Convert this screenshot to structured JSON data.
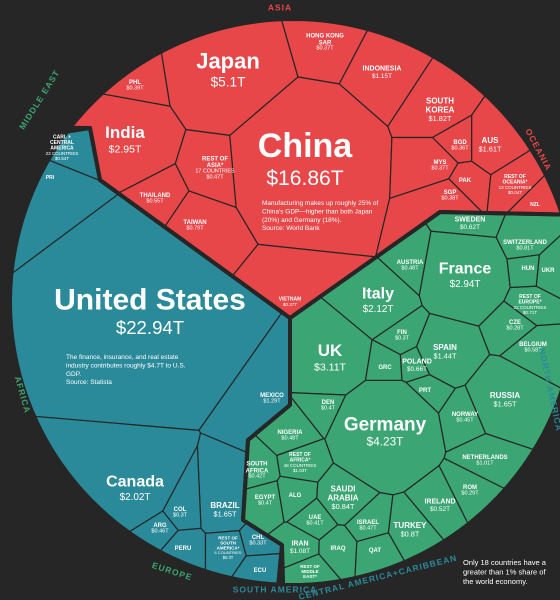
{
  "chart_data": {
    "type": "voronoi_treemap",
    "regions": [
      {
        "name": "ASIA",
        "color": "#e8474a",
        "countries": [
          {
            "name": "China",
            "value": 16.86,
            "value_label": "$16.86T"
          },
          {
            "name": "Japan",
            "value": 5.1,
            "value_label": "$5.1T"
          },
          {
            "name": "India",
            "value": 2.95,
            "value_label": "$2.95T"
          },
          {
            "name": "REST OF ASIA*",
            "note": "17 COUNTRIES",
            "value": 0.47,
            "value_label": "$0.47T"
          },
          {
            "name": "THAILAND",
            "value": 0.55,
            "value_label": "$0.55T"
          },
          {
            "name": "TAIWAN",
            "value": 0.79,
            "value_label": "$0.79T"
          },
          {
            "name": "HONG KONG SAR",
            "value": 0.37,
            "value_label": "$0.37T"
          },
          {
            "name": "INDONESIA",
            "value": 1.15,
            "value_label": "$1.15T"
          },
          {
            "name": "SOUTH KOREA",
            "value": 1.82,
            "value_label": "$1.82T"
          },
          {
            "name": "BGD",
            "value": 0.36,
            "value_label": "$0.36T"
          },
          {
            "name": "MYS",
            "value": 0.37,
            "value_label": "$0.37T"
          },
          {
            "name": "PAK",
            "value": 0.26
          },
          {
            "name": "SGP",
            "value": 0.38,
            "value_label": "$0.38T"
          },
          {
            "name": "PHL",
            "value": 0.39,
            "value_label": "$0.39T"
          },
          {
            "name": "VIETNAM",
            "value": 0.37,
            "value_label": "$0.37T"
          }
        ]
      },
      {
        "name": "OCEANIA",
        "color": "#e8474a",
        "countries": [
          {
            "name": "AUS",
            "value": 1.61,
            "value_label": "$1.61T"
          },
          {
            "name": "REST OF OCEANIA*",
            "note": "13 COUNTRIES",
            "value": 0.04,
            "value_label": "$0.04T"
          },
          {
            "name": "NZL",
            "value": 0.25
          }
        ]
      },
      {
        "name": "NORTH AMERICA",
        "color": "#2b8a9a",
        "countries": [
          {
            "name": "United States",
            "value": 22.94,
            "value_label": "$22.94T"
          },
          {
            "name": "Canada",
            "value": 2.02,
            "value_label": "$2.02T"
          },
          {
            "name": "MEXICO",
            "value": 1.29,
            "value_label": "$1.29T"
          }
        ]
      },
      {
        "name": "CENTRAL AMERICA+CARIBBEAN",
        "color": "#2b8a9a",
        "countries": [
          {
            "name": "CARI. + CENTRAL AMERICA",
            "note": "23 COUNTRIES",
            "value": 0.54,
            "value_label": "$0.54T"
          },
          {
            "name": "PRI",
            "value": 0.1
          }
        ]
      },
      {
        "name": "SOUTH AMERICA",
        "color": "#2b8a9a",
        "countries": [
          {
            "name": "BRAZIL",
            "value": 1.65,
            "value_label": "$1.65T"
          },
          {
            "name": "ARG",
            "value": 0.46,
            "value_label": "$0.46T"
          },
          {
            "name": "COL",
            "value": 0.3,
            "value_label": "$0.3T"
          },
          {
            "name": "PERU",
            "value": 0.22
          },
          {
            "name": "CHL",
            "value": 0.33,
            "value_label": "$0.33T"
          },
          {
            "name": "REST OF SOUTH AMERICA*",
            "note": "6 COUNTRIES",
            "value": 0.3,
            "value_label": "$0.3T"
          },
          {
            "name": "ECU",
            "value": 0.11
          }
        ]
      },
      {
        "name": "EUROPE",
        "color": "#3ba673",
        "countries": [
          {
            "name": "Germany",
            "value": 4.23,
            "value_label": "$4.23T"
          },
          {
            "name": "UK",
            "value": 3.11,
            "value_label": "$3.11T"
          },
          {
            "name": "France",
            "value": 2.94,
            "value_label": "$2.94T"
          },
          {
            "name": "Italy",
            "value": 2.12,
            "value_label": "$2.12T"
          },
          {
            "name": "SPAIN",
            "value": 1.44,
            "value_label": "$1.44T"
          },
          {
            "name": "RUSSIA",
            "value": 1.65,
            "value_label": "$1.65T"
          },
          {
            "name": "REST OF EUROPE*",
            "note": "22 COUNTRIES",
            "value": 0.71,
            "value_label": "$0.71T"
          },
          {
            "name": "SWEDEN",
            "value": 0.62,
            "value_label": "$0.62T"
          },
          {
            "name": "SWITZERLAND",
            "value": 0.81,
            "value_label": "$0.81T"
          },
          {
            "name": "NETHERLANDS",
            "value": 1.01,
            "value_label": "$1.01T"
          },
          {
            "name": "POLAND",
            "value": 0.66,
            "value_label": "$0.66T"
          },
          {
            "name": "BELGIUM",
            "value": 0.58,
            "value_label": "$0.58T"
          },
          {
            "name": "AUSTRIA",
            "value": 0.48,
            "value_label": "$0.48T"
          },
          {
            "name": "NORWAY",
            "value": 0.45,
            "value_label": "$0.45T"
          },
          {
            "name": "IRELAND",
            "value": 0.52,
            "value_label": "$0.52T"
          },
          {
            "name": "ROM",
            "value": 0.29,
            "value_label": "$0.29T"
          },
          {
            "name": "CZE",
            "value": 0.28,
            "value_label": "$0.28T"
          },
          {
            "name": "FIN",
            "value": 0.3,
            "value_label": "$0.3T"
          },
          {
            "name": "GRC",
            "value": 0.21
          },
          {
            "name": "PRT",
            "value": 0.25
          },
          {
            "name": "DEN",
            "value": 0.4,
            "value_label": "$0.4T"
          },
          {
            "name": "HUN",
            "value": 0.18
          },
          {
            "name": "UKR",
            "value": 0.18
          }
        ]
      },
      {
        "name": "AFRICA",
        "color": "#3ba673",
        "countries": [
          {
            "name": "NIGERIA",
            "value": 0.48,
            "value_label": "$0.48T"
          },
          {
            "name": "REST OF AFRICA*",
            "note": "48 COUNTRIES",
            "value": 1.03,
            "value_label": "$1.03T"
          },
          {
            "name": "SOUTH AFRICA",
            "value": 0.42,
            "value_label": "$0.42T"
          },
          {
            "name": "EGYPT",
            "value": 0.4,
            "value_label": "$0.4T"
          },
          {
            "name": "ALG",
            "value": 0.17
          }
        ]
      },
      {
        "name": "MIDDLE EAST",
        "color": "#3ba673",
        "countries": [
          {
            "name": "SAUDI ARABIA",
            "value": 0.84,
            "value_label": "$0.84T"
          },
          {
            "name": "UAE",
            "value": 0.41,
            "value_label": "$0.41T"
          },
          {
            "name": "ISRAEL",
            "value": 0.47,
            "value_label": "$0.47T"
          },
          {
            "name": "TURKEY",
            "value": 0.8,
            "value_label": "$0.8T"
          },
          {
            "name": "IRAN",
            "value": 1.08,
            "value_label": "$1.08T"
          },
          {
            "name": "IRAQ",
            "value": 0.19
          },
          {
            "name": "REST OF MIDDLE EAST*",
            "value": 0.41
          },
          {
            "name": "QAT",
            "value": 0.17
          }
        ]
      }
    ],
    "annotations": [
      {
        "text": "Manufacturing makes up roughly 25% of China's GDP—higher than both Japan (20%) and Germany (18%).",
        "source": "Source: World Bank"
      },
      {
        "text": "The finance, insurance, and real estate industry contributes roughly $4.7T to U.S. GDP.",
        "source": "Source: Statista"
      }
    ],
    "footnote": "Only 18 countries have a greater than 1% share of the world economy."
  }
}
